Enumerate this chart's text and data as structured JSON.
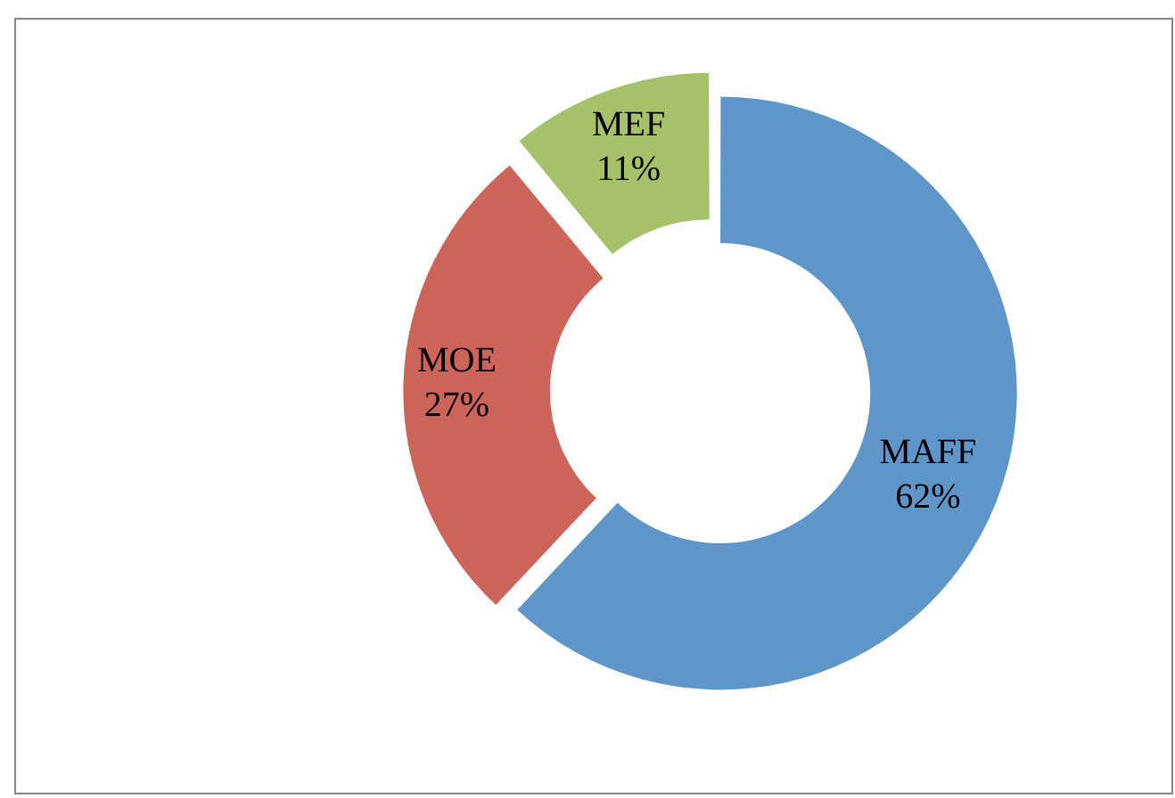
{
  "chart_data": {
    "type": "donut",
    "categories": [
      "MAFF",
      "MOE",
      "MEF"
    ],
    "values": [
      62,
      27,
      11
    ],
    "colors": [
      "#5f96c9",
      "#cd645a",
      "#a5c26a"
    ],
    "value_labels": [
      "62%",
      "27%",
      "11%"
    ],
    "legend": false
  }
}
